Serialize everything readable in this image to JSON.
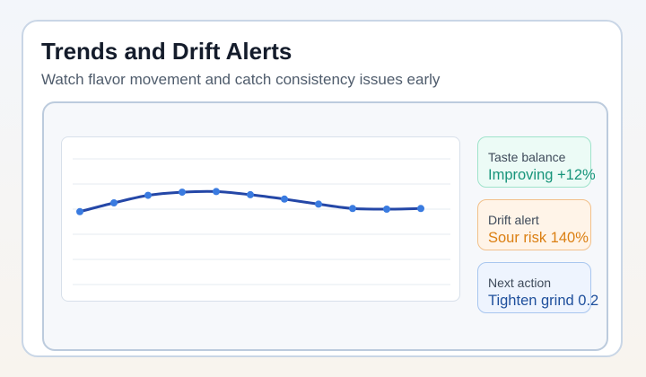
{
  "header": {
    "title": "Trends and Drift Alerts",
    "subtitle": "Watch flavor movement and catch consistency issues early"
  },
  "stats": {
    "balance": {
      "label": "Taste balance",
      "value": "Improving +12%"
    },
    "drift": {
      "label": "Drift alert",
      "value": "Sour risk 140%"
    },
    "action": {
      "label": "Next action",
      "value": "Tighten grind 0.2"
    }
  },
  "colors": {
    "line": "#2447a7",
    "point": "#3a7be0",
    "grid": "#e6ebf2",
    "balance_accent": "#17947a",
    "drift_accent": "#db7f12",
    "action_accent": "#1e4f9c"
  },
  "chart_data": {
    "type": "line",
    "grid": true,
    "ylim": [
      0,
      1
    ],
    "x": [
      1,
      2,
      3,
      4,
      5,
      6,
      7,
      8,
      9,
      10,
      11
    ],
    "series": [
      {
        "values": [
          0.58,
          0.65,
          0.71,
          0.735,
          0.74,
          0.715,
          0.68,
          0.64,
          0.605,
          0.6,
          0.605
        ]
      }
    ]
  }
}
